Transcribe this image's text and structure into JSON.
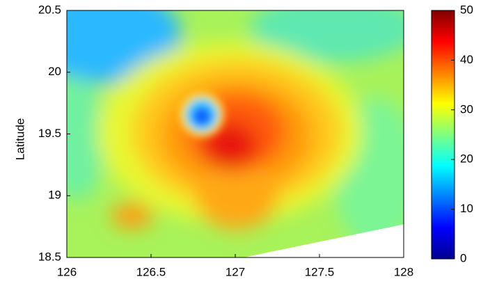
{
  "chart_data": {
    "type": "heatmap",
    "ylabel": "Latitude",
    "xlim": [
      126,
      128
    ],
    "xticks": [
      126,
      126.5,
      127,
      127.5,
      128
    ],
    "ylim": [
      18.5,
      20.5
    ],
    "yticks": [
      18.5,
      19,
      19.5,
      20,
      20.5
    ],
    "colormap": "jet",
    "colorbar": {
      "lim": [
        0,
        50
      ],
      "ticks": [
        0,
        10,
        20,
        30,
        40,
        50
      ]
    }
  }
}
